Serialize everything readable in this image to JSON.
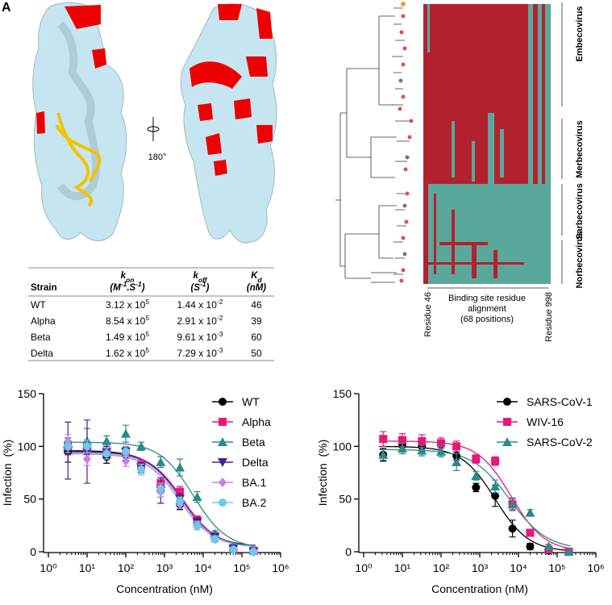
{
  "panel_label": "A",
  "structure": {
    "rotation_label": "180°"
  },
  "table": {
    "header": [
      {
        "name": [
          {
            "text": "Strain"
          }
        ],
        "unit": []
      },
      {
        "name": [
          {
            "text": "k"
          },
          {
            "text": "on",
            "shift": "sub"
          }
        ],
        "unit": [
          {
            "text": "(M"
          },
          {
            "text": "-1",
            "shift": "super"
          },
          {
            "text": ".S"
          },
          {
            "text": "-1",
            "shift": "super"
          },
          {
            "text": ")"
          }
        ]
      },
      {
        "name": [
          {
            "text": "k"
          },
          {
            "text": "off",
            "shift": "sub"
          }
        ],
        "unit": [
          {
            "text": "(S"
          },
          {
            "text": "-1",
            "shift": "super"
          },
          {
            "text": ")"
          }
        ]
      },
      {
        "name": [
          {
            "text": "K"
          },
          {
            "text": "d",
            "shift": "sub"
          }
        ],
        "unit": [
          {
            "text": "(nM)"
          }
        ]
      }
    ],
    "rows": [
      [
        "WT",
        {
          "mantissa": "3.12 x 10",
          "exponent": "5"
        },
        {
          "mantissa": "1.44 x 10",
          "exponent": "-2"
        },
        "46"
      ],
      [
        "Alpha",
        {
          "mantissa": "8.54 x 10",
          "exponent": "5"
        },
        {
          "mantissa": "2.91 x 10",
          "exponent": "-2"
        },
        "39"
      ],
      [
        "Beta",
        {
          "mantissa": "1.49 x 10",
          "exponent": "5"
        },
        {
          "mantissa": "9.61 x 10",
          "exponent": "-3"
        },
        "60"
      ],
      [
        "Delta",
        {
          "mantissa": "1.62 x 10",
          "exponent": "5"
        },
        {
          "mantissa": "7.29 x 10",
          "exponent": "-3"
        },
        "50"
      ]
    ]
  },
  "phylogeny": {
    "clades": [
      "Embecovirus",
      "Merbecovirus",
      "Sarbecovirus",
      "Norbecovirus"
    ],
    "alignment_label": [
      "Binding site residue",
      "alignment",
      "(68 positions)"
    ],
    "start_label": "Residue 46",
    "end_label": "Residue 998"
  },
  "chart_data": [
    {
      "type": "scatter",
      "x_label": "Concentration (nM)",
      "y_label": "Infection  (%)",
      "log_x": true,
      "xlim": [
        1,
        1000000
      ],
      "xticks": [
        {
          "value": 1,
          "label": "10⁰"
        },
        {
          "value": 10,
          "label": "10¹"
        },
        {
          "value": 100,
          "label": "10²"
        },
        {
          "value": 1000,
          "label": "10³"
        },
        {
          "value": 10000,
          "label": "10⁴"
        },
        {
          "value": 100000,
          "label": "10⁵"
        },
        {
          "value": 1000000,
          "label": "10⁶"
        }
      ],
      "ylim": [
        0,
        150
      ],
      "yticks": [
        0,
        50,
        100,
        150
      ],
      "legend": "upper right",
      "x": [
        3.2,
        10,
        32,
        100,
        250,
        800,
        2500,
        7000,
        20000,
        60000,
        200000
      ],
      "series": [
        {
          "name": "WT",
          "color": "#000000",
          "marker": "circle",
          "values": [
            95,
            102,
            90,
            92,
            80,
            58,
            45,
            25,
            12,
            2,
            0
          ],
          "errors": [
            10,
            4,
            6,
            5,
            5,
            6,
            5,
            4,
            3,
            2,
            1
          ],
          "fit": {
            "top": 96,
            "bottom": 5,
            "ec50": 2600,
            "hill": 1
          }
        },
        {
          "name": "Alpha",
          "color": "#e6197a",
          "marker": "square",
          "values": [
            100,
            98,
            95,
            95,
            82,
            65,
            57,
            30,
            15,
            3,
            1
          ],
          "errors": [
            8,
            6,
            5,
            4,
            5,
            5,
            5,
            4,
            3,
            2,
            1
          ],
          "fit": {
            "top": 95,
            "bottom": 4,
            "ec50": 3000,
            "hill": 1
          }
        },
        {
          "name": "Beta",
          "color": "#2a8a8a",
          "marker": "triangle",
          "values": [
            102,
            105,
            105,
            112,
            100,
            85,
            80,
            52,
            17,
            5,
            1
          ],
          "errors": [
            6,
            12,
            5,
            8,
            4,
            5,
            8,
            5,
            3,
            2,
            1
          ],
          "fit": {
            "top": 104,
            "bottom": 3,
            "ec50": 5500,
            "hill": 1
          }
        },
        {
          "name": "Delta",
          "color": "#4b1f8c",
          "marker": "triangle-down",
          "values": [
            96,
            95,
            95,
            95,
            80,
            58,
            50,
            28,
            14,
            3,
            0
          ],
          "errors": [
            27,
            30,
            5,
            5,
            5,
            12,
            5,
            4,
            3,
            2,
            1
          ],
          "fit": {
            "top": 95,
            "bottom": 4,
            "ec50": 2800,
            "hill": 1
          }
        },
        {
          "name": "BA.1",
          "color": "#c77de6",
          "marker": "diamond",
          "values": [
            105,
            88,
            93,
            86,
            78,
            57,
            45,
            25,
            12,
            2,
            0
          ],
          "errors": [
            6,
            6,
            5,
            5,
            5,
            5,
            4,
            4,
            3,
            2,
            1
          ],
          "fit": {
            "top": 93,
            "bottom": 4,
            "ec50": 2500,
            "hill": 1
          }
        },
        {
          "name": "BA.2",
          "color": "#6ec6ea",
          "marker": "circle",
          "values": [
            100,
            100,
            93,
            95,
            78,
            60,
            48,
            25,
            12,
            2,
            0
          ],
          "errors": [
            6,
            6,
            5,
            5,
            5,
            5,
            4,
            4,
            3,
            2,
            1
          ],
          "fit": {
            "top": 94,
            "bottom": 4,
            "ec50": 2700,
            "hill": 1
          }
        }
      ]
    },
    {
      "type": "scatter",
      "x_label": "Concentration (nM)",
      "y_label": "Infection  (%)",
      "log_x": true,
      "xlim": [
        1,
        1000000
      ],
      "xticks": [
        {
          "value": 1,
          "label": "10⁰"
        },
        {
          "value": 10,
          "label": "10¹"
        },
        {
          "value": 100,
          "label": "10²"
        },
        {
          "value": 1000,
          "label": "10³"
        },
        {
          "value": 10000,
          "label": "10⁴"
        },
        {
          "value": 100000,
          "label": "10⁵"
        },
        {
          "value": 1000000,
          "label": "10⁶"
        }
      ],
      "ylim": [
        0,
        150
      ],
      "yticks": [
        0,
        50,
        100,
        150
      ],
      "legend": "upper right",
      "x": [
        3.2,
        10,
        32,
        100,
        250,
        800,
        2500,
        7000,
        20000,
        60000,
        200000
      ],
      "series": [
        {
          "name": "SARS-CoV-1",
          "color": "#000000",
          "marker": "circle",
          "values": [
            92,
            101,
            100,
            102,
            91,
            61,
            53,
            22,
            5,
            1,
            0
          ],
          "errors": [
            6,
            5,
            4,
            4,
            4,
            4,
            10,
            8,
            3,
            1,
            1
          ],
          "fit": {
            "top": 100,
            "bottom": 0,
            "ec50": 2500,
            "hill": 1
          }
        },
        {
          "name": "WIV-16",
          "color": "#e6197a",
          "marker": "square",
          "values": [
            107,
            106,
            105,
            103,
            100,
            88,
            86,
            45,
            18,
            2,
            0
          ],
          "errors": [
            7,
            6,
            6,
            5,
            5,
            4,
            4,
            6,
            3,
            1,
            1
          ],
          "fit": {
            "top": 105,
            "bottom": 0,
            "ec50": 6500,
            "hill": 1
          }
        },
        {
          "name": "SARS-CoV-2",
          "color": "#2a8a8a",
          "marker": "triangle",
          "values": [
            92,
            98,
            96,
            95,
            85,
            72,
            62,
            45,
            37,
            5,
            0
          ],
          "errors": [
            5,
            5,
            5,
            5,
            8,
            4,
            6,
            5,
            3,
            2,
            1
          ],
          "fit": {
            "top": 97,
            "bottom": 2,
            "ec50": 6000,
            "hill": 0.9
          }
        }
      ]
    }
  ]
}
